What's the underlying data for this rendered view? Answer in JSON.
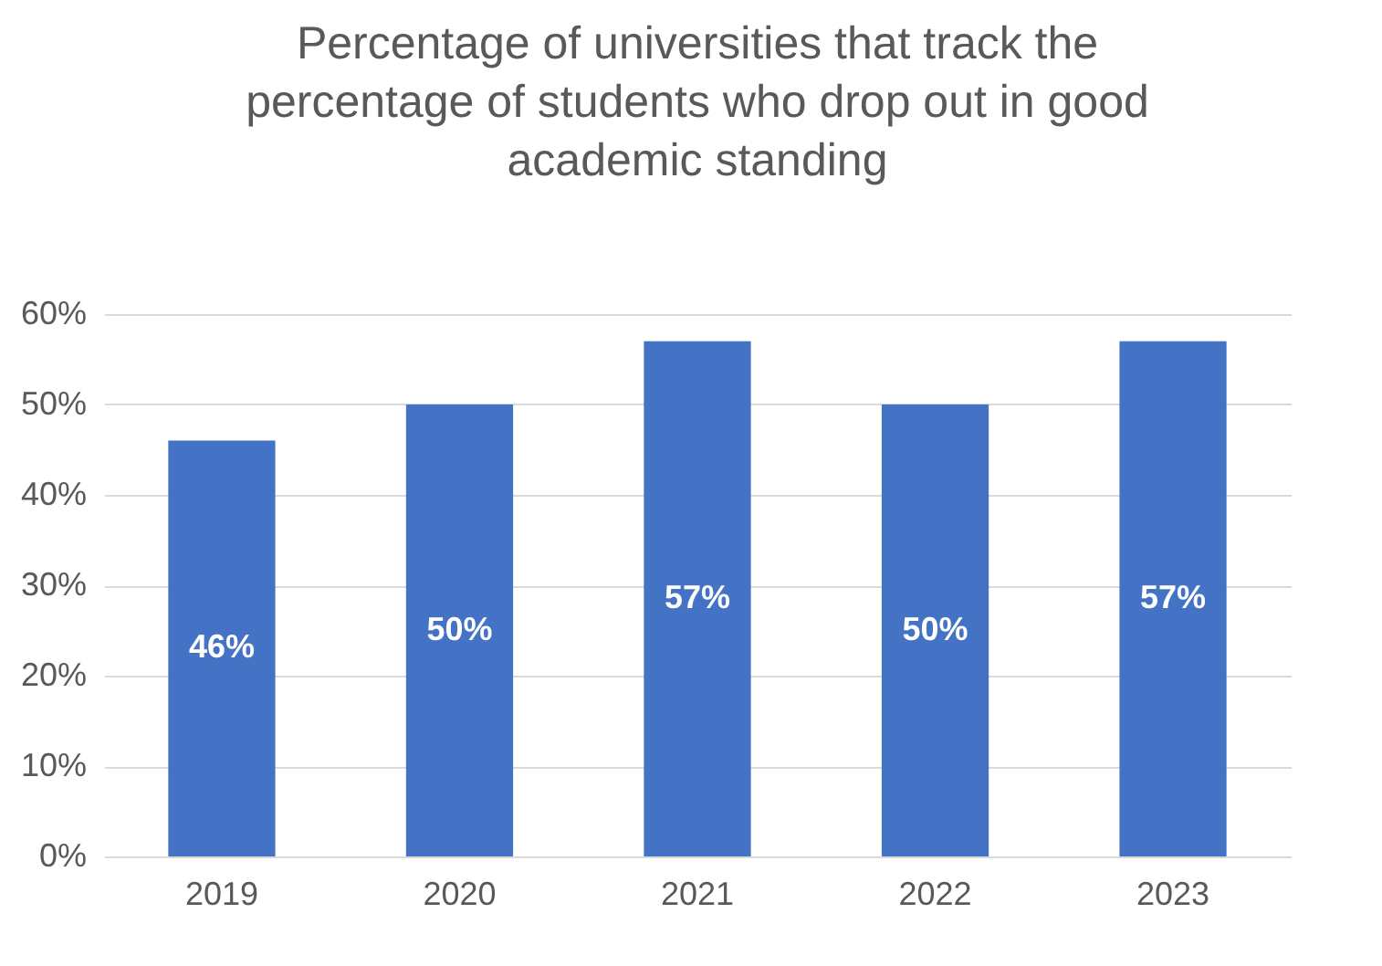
{
  "chart_data": {
    "type": "bar",
    "title": "Percentage of universities that track the percentage of students who drop out in good academic standing",
    "categories": [
      "2019",
      "2020",
      "2021",
      "2022",
      "2023"
    ],
    "values": [
      46,
      50,
      57,
      50,
      57
    ],
    "color": "#4472c4",
    "ylim": [
      0,
      60
    ],
    "yticks": [
      {
        "value": 0,
        "label": "0%"
      },
      {
        "value": 10,
        "label": "10%"
      },
      {
        "value": 20,
        "label": "20%"
      },
      {
        "value": 30,
        "label": "30%"
      },
      {
        "value": 40,
        "label": "40%"
      },
      {
        "value": 50,
        "label": "50%"
      },
      {
        "value": 60,
        "label": "60%"
      }
    ],
    "grid": "y",
    "value_labels": [
      "46%",
      "50%",
      "57%",
      "50%",
      "57%"
    ]
  }
}
